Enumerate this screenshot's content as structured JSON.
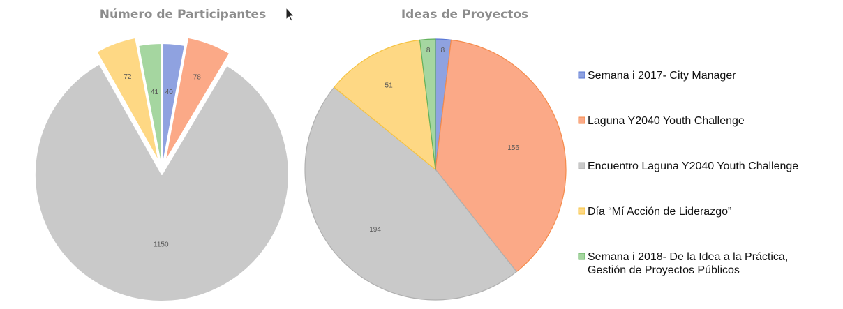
{
  "colors": {
    "blue": "#8fa2e0",
    "orange": "#fba987",
    "gray": "#c9c9c9",
    "yellow": "#fed884",
    "green": "#a5d6a0",
    "blue_edge": "#5a78d6",
    "orange_edge": "#f58a4a",
    "gray_edge": "#b0b0b0",
    "yellow_edge": "#f5c342",
    "green_edge": "#62b15c"
  },
  "legend": [
    {
      "lines": [
        "Semana i 2017- City Manager"
      ],
      "color": "blue"
    },
    {
      "lines": [
        "Laguna Y2040 Youth Challenge"
      ],
      "color": "orange"
    },
    {
      "lines": [
        "Encuentro Laguna Y2040 Youth Challenge"
      ],
      "color": "gray"
    },
    {
      "lines": [
        "Día “Mí Acción de Liderazgo”"
      ],
      "color": "yellow"
    },
    {
      "lines": [
        "Semana i 2018- De la Idea a la Práctica,",
        "Gestión de Proyectos Públicos"
      ],
      "color": "green"
    }
  ],
  "chart_data": [
    {
      "type": "pie",
      "title": "Número de Participantes",
      "exploded": true,
      "slices": [
        {
          "category": "Semana i 2017- City Manager",
          "value": 40,
          "label": "40",
          "color": "blue"
        },
        {
          "category": "Laguna Y2040 Youth Challenge",
          "value": 78,
          "label": "78",
          "color": "orange"
        },
        {
          "category": "Encuentro Laguna Y2040 Youth Challenge",
          "value": 1150,
          "label": "1150",
          "color": "gray"
        },
        {
          "category": "Día “Mí Acción de Liderazgo”",
          "value": 72,
          "label": "72",
          "color": "yellow"
        },
        {
          "category": "Semana i 2018- De la Idea a la Práctica, Gestión de Proyectos Públicos",
          "value": 41,
          "label": "41",
          "color": "green"
        }
      ]
    },
    {
      "type": "pie",
      "title": "Ideas de Proyectos",
      "exploded": false,
      "slices": [
        {
          "category": "Semana i 2017- City Manager",
          "value": 8,
          "label": "8",
          "color": "blue"
        },
        {
          "category": "Laguna Y2040 Youth Challenge",
          "value": 156,
          "label": "156",
          "color": "orange"
        },
        {
          "category": "Encuentro Laguna Y2040 Youth Challenge",
          "value": 194,
          "label": "194",
          "color": "gray"
        },
        {
          "category": "Día “Mí Acción de Liderazgo”",
          "value": 51,
          "label": "51",
          "color": "yellow"
        },
        {
          "category": "Semana i 2018- De la Idea a la Práctica, Gestión de Proyectos Públicos",
          "value": 8,
          "label": "8",
          "color": "green"
        }
      ]
    }
  ]
}
